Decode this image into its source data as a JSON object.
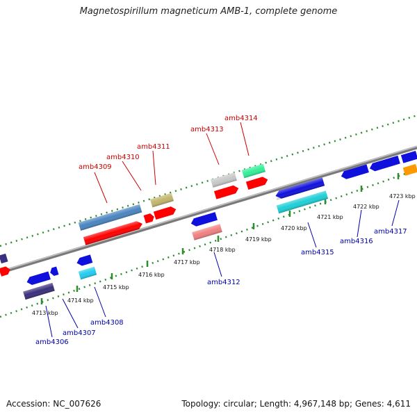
{
  "title": "Magnetospirillum magneticum AMB-1, complete genome",
  "footer": {
    "accession": "Accession: NC_007626",
    "topology": "Topology: circular; Length: 4,967,148 bp; Genes: 4,611"
  },
  "colors": {
    "backbone": "#8c8c8c",
    "dotted_track": "#2e8b2e",
    "top_label": "#cc0000",
    "bottom_label": "#0000aa"
  },
  "tick_labels": [
    "4713 kbp",
    "4714 kbp",
    "4715 kbp",
    "4716 kbp",
    "4717 kbp",
    "4718 kbp",
    "4719 kbp",
    "4720 kbp",
    "4721 kbp",
    "4722 kbp",
    "4723 kbp"
  ],
  "genes_top": [
    {
      "name": "amb4309"
    },
    {
      "name": "amb4310"
    },
    {
      "name": "amb4311"
    },
    {
      "name": "amb4313"
    },
    {
      "name": "amb4314"
    }
  ],
  "genes_bottom": [
    {
      "name": "amb4306"
    },
    {
      "name": "amb4307"
    },
    {
      "name": "amb4308"
    },
    {
      "name": "amb4312"
    },
    {
      "name": "amb4315"
    },
    {
      "name": "amb4316"
    },
    {
      "name": "amb4317"
    }
  ]
}
